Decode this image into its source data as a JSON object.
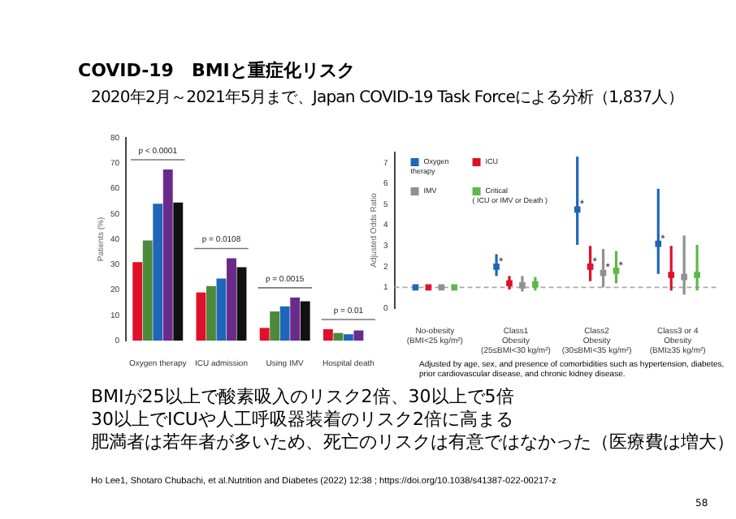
{
  "chart_data": [
    {
      "type": "bar",
      "title": "COVID-19　BMIと重症化リスク",
      "subtitle": "2020年2月～2021年5月まで、Japan COVID-19 Task Forceによる分析（1,837人）",
      "ylabel": "Patients (%)",
      "categories": [
        "Oxygen therapy",
        "ICU admission",
        "Using IMV",
        "Hospital death"
      ],
      "series": [
        {
          "color": "#e0102a",
          "values": [
            31,
            19,
            5,
            4.5
          ]
        },
        {
          "color": "#4a8a3a",
          "values": [
            39.5,
            21.5,
            11.5,
            3
          ]
        },
        {
          "color": "#1f66b8",
          "values": [
            54,
            24.5,
            13.5,
            2.5
          ]
        },
        {
          "color": "#6a2a8a",
          "values": [
            67.5,
            32.5,
            17,
            4
          ]
        },
        {
          "color": "#111111",
          "values": [
            54.5,
            29,
            15.5,
            null
          ]
        }
      ],
      "ylim": [
        0,
        80
      ],
      "yticks": [
        0,
        10,
        20,
        30,
        40,
        50,
        60,
        70,
        80
      ],
      "grid": false,
      "legend": false,
      "annotations": [
        "p < 0.0001",
        "p = 0.0108",
        "p = 0.0015",
        "p = 0.01",
        "BMIが25以上で酸素吸入のリスク2倍、30以上で5倍",
        "30以上でICUや人工呼吸器装着のリスク2倍に高まる",
        "肥満者は若年者が多いため、死亡のリスクは有意ではなかった（医療費は増大）",
        "Ho Lee1, Shotaro Chubachi, et al.Nutrition and Diabetes (2022) 12:38 ; https://doi.org/10.1038/s41387-022-00217-z",
        "58"
      ]
    },
    {
      "type": "scatter",
      "ylabel": "Adjusted Odds Ratio",
      "categories": [
        "No-obesity\n(BMI<25 kg/m²)",
        "Class1\nObesity\n(25≤BMI<30 kg/m²)",
        "Class2\nObesity\n(30≤BMI<35 kg/m²)",
        "Class3 or 4\nObesity\n(BMI≥35 kg/m²)"
      ],
      "series": [
        {
          "name": "Oxygen\ntherapy",
          "color": "#1f66b8",
          "values": [
            1,
            2.0,
            4.75,
            3.1
          ],
          "value_labels": [
            null,
            "*",
            "*",
            "*"
          ],
          "errors": [
            null,
            [
              1.55,
              2.6
            ],
            [
              3.05,
              7.3
            ],
            [
              1.65,
              5.75
            ]
          ]
        },
        {
          "name": "ICU",
          "color": "#e0102a",
          "values": [
            1,
            1.2,
            2.0,
            1.6
          ],
          "value_labels": [
            null,
            null,
            "*",
            null
          ],
          "errors": [
            null,
            [
              0.9,
              1.55
            ],
            [
              1.3,
              3.0
            ],
            [
              0.85,
              3.0
            ]
          ]
        },
        {
          "name": "IMV",
          "color": "#909090",
          "values": [
            1,
            1.1,
            1.7,
            1.5
          ],
          "value_labels": [
            null,
            null,
            "*",
            null
          ],
          "errors": [
            null,
            [
              0.8,
              1.55
            ],
            [
              1.0,
              2.85
            ],
            [
              0.65,
              3.5
            ]
          ]
        },
        {
          "name": "Critical\n( ICU or IMV or Death )",
          "color": "#5cb84a",
          "values": [
            1,
            1.15,
            1.8,
            1.6
          ],
          "value_labels": [
            null,
            null,
            "*",
            null
          ],
          "errors": [
            null,
            [
              0.85,
              1.5
            ],
            [
              1.2,
              2.75
            ],
            [
              0.85,
              3.05
            ]
          ]
        }
      ],
      "ylim": [
        0,
        7.5
      ],
      "yticks": [
        0,
        1,
        2,
        3,
        4,
        5,
        6,
        7
      ],
      "grid": false,
      "legend": "top left",
      "marker": "square",
      "ref_lines": [
        {
          "axis": "y",
          "value": 1,
          "color": "#aaaaaa",
          "line_style": "dashed"
        }
      ],
      "annotations": [
        "Adjusted by age, sex, and presence of comorbidities such as hypertension, diabetes, prior cardiovascular disease, and chronic kidney disease."
      ]
    }
  ]
}
